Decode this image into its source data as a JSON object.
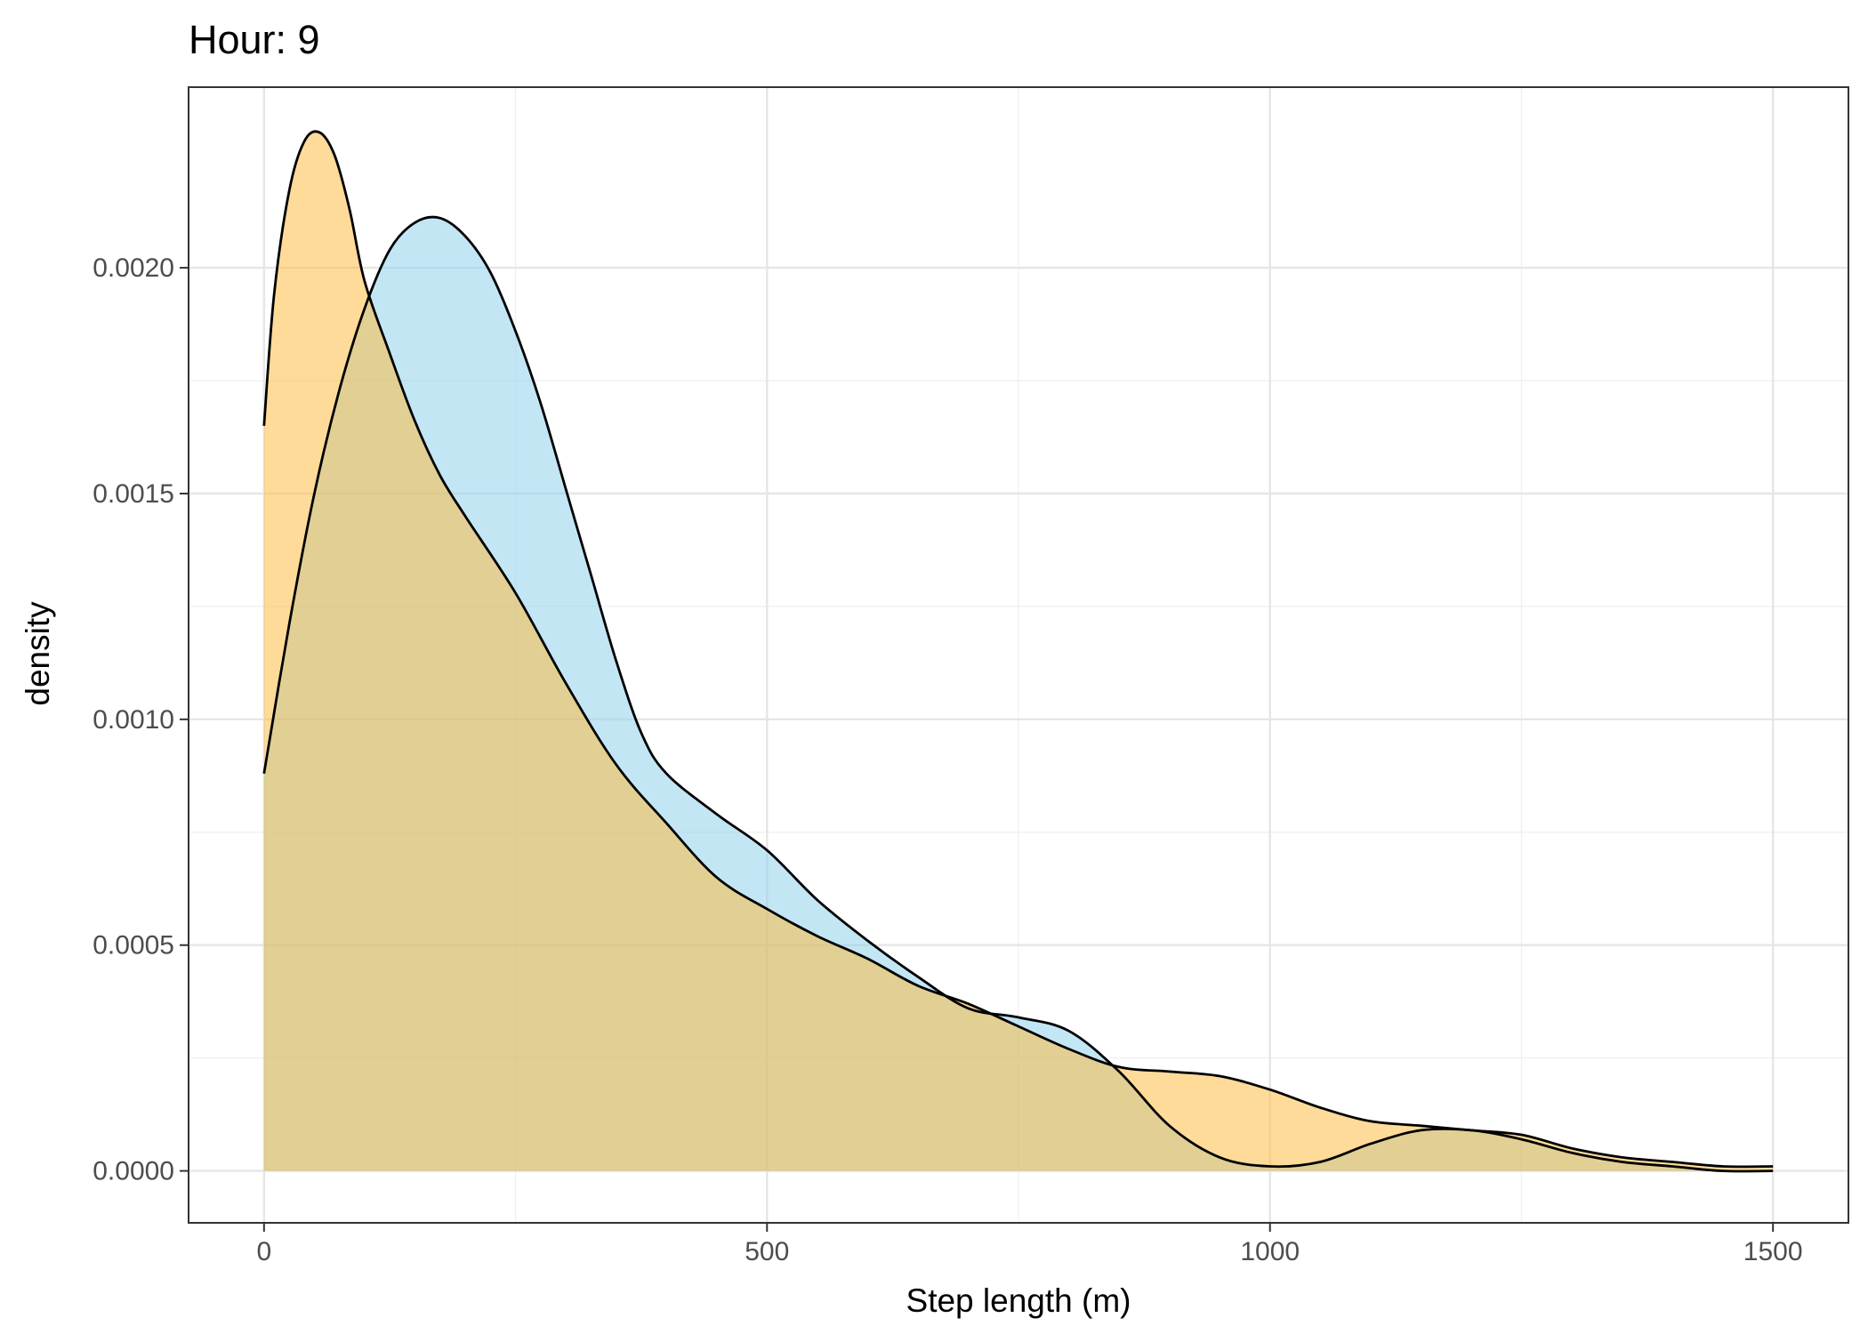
{
  "chart_data": {
    "type": "area",
    "title": "Hour: 9",
    "xlabel": "Step length (m)",
    "ylabel": "density",
    "xlim": [
      -75,
      1575
    ],
    "ylim": [
      -0.000115,
      0.0024
    ],
    "x_ticks": [
      0,
      500,
      1000,
      1500
    ],
    "x_tick_labels": [
      "0",
      "500",
      "1000",
      "1500"
    ],
    "y_ticks": [
      0,
      0.0005,
      0.001,
      0.0015,
      0.002
    ],
    "y_tick_labels": [
      "0.0000",
      "0.0005",
      "0.0010",
      "0.0015",
      "0.0020"
    ],
    "grid": true,
    "legend": "none",
    "series": [
      {
        "color": "#87CEEB",
        "x": [
          0,
          25,
          50,
          75,
          100,
          125,
          150,
          175,
          200,
          225,
          250,
          275,
          300,
          325,
          350,
          375,
          400,
          450,
          500,
          550,
          600,
          650,
          700,
          750,
          800,
          850,
          900,
          950,
          1000,
          1050,
          1100,
          1150,
          1200,
          1250,
          1300,
          1350,
          1400,
          1450,
          1500
        ],
        "y": [
          0.00088,
          0.00121,
          0.0015,
          0.00173,
          0.00191,
          0.00204,
          0.0021,
          0.00211,
          0.00207,
          0.00199,
          0.00186,
          0.0017,
          0.00151,
          0.00132,
          0.00113,
          0.00097,
          0.00088,
          0.00079,
          0.00071,
          0.0006,
          0.00051,
          0.00043,
          0.00036,
          0.00034,
          0.00031,
          0.00022,
          0.0001,
          3e-05,
          1e-05,
          2e-05,
          6e-05,
          9e-05,
          9e-05,
          7e-05,
          4e-05,
          2e-05,
          1e-05,
          0.0,
          0.0
        ]
      },
      {
        "color": "#FFB833",
        "x": [
          0,
          10,
          25,
          40,
          55,
          70,
          85,
          100,
          125,
          150,
          175,
          200,
          250,
          300,
          350,
          400,
          450,
          500,
          550,
          600,
          650,
          700,
          750,
          800,
          850,
          900,
          950,
          1000,
          1050,
          1100,
          1150,
          1200,
          1250,
          1300,
          1350,
          1400,
          1450,
          1500
        ],
        "y": [
          0.00165,
          0.00194,
          0.00217,
          0.00228,
          0.0023,
          0.00225,
          0.00213,
          0.00197,
          0.00181,
          0.00166,
          0.00154,
          0.00145,
          0.00128,
          0.00108,
          0.0009,
          0.00077,
          0.00065,
          0.00058,
          0.00052,
          0.00047,
          0.00041,
          0.00037,
          0.00032,
          0.00027,
          0.00023,
          0.00022,
          0.00021,
          0.00018,
          0.00014,
          0.00011,
          0.0001,
          9e-05,
          8e-05,
          5e-05,
          3e-05,
          2e-05,
          1e-05,
          1e-05
        ]
      }
    ]
  }
}
